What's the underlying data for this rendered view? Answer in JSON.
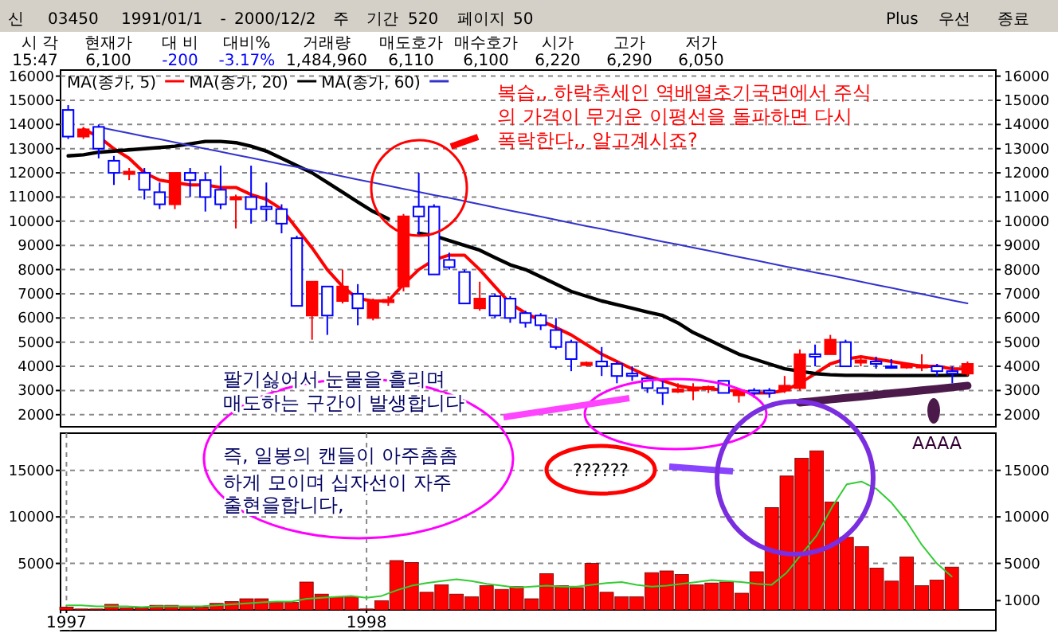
{
  "chart_data": [
    {
      "type": "other",
      "annotations": [
        "신",
        "03450",
        "1991/01/1",
        "-",
        "2000/12/2",
        "주",
        "기간",
        "520",
        "페이지",
        "50",
        "Plus",
        "우선",
        "종료",
        "시 각",
        "현재가",
        "대 비",
        "대비%",
        "거래량",
        "매도호가",
        "매수호가",
        "시가",
        "고가",
        "저가",
        "15:47",
        "6,100",
        "-200",
        "-3.17%",
        "1,484,960",
        "6,110",
        "6,100",
        "6,220",
        "6,290",
        "6,050"
      ]
    },
    {
      "type": "candlestick",
      "categories": [
        null,
        null,
        null,
        null,
        null,
        null,
        null,
        null,
        null,
        null,
        null,
        null,
        null,
        null,
        null,
        null,
        null,
        null,
        null,
        null,
        null,
        null,
        null,
        null,
        null,
        null,
        null,
        null,
        null,
        null,
        null,
        null,
        null,
        null,
        null,
        null,
        null,
        null,
        null,
        null,
        null,
        null,
        null,
        null,
        null,
        null,
        null,
        null,
        null,
        null,
        null,
        null,
        null,
        null,
        null,
        null,
        null,
        null,
        null,
        null
      ],
      "ohlc": [
        [
          14600,
          14800,
          13400,
          13500
        ],
        [
          13500,
          13900,
          13400,
          13800
        ],
        [
          13900,
          14000,
          12600,
          13000
        ],
        [
          12500,
          12700,
          11500,
          12000
        ],
        [
          11950,
          12200,
          11700,
          12050
        ],
        [
          12000,
          12200,
          10900,
          11300
        ],
        [
          11200,
          11600,
          10500,
          10700
        ],
        [
          10700,
          12000,
          10500,
          12000
        ],
        [
          12000,
          12200,
          11000,
          11700
        ],
        [
          11700,
          12000,
          10400,
          11000
        ],
        [
          11300,
          12300,
          10500,
          10700
        ],
        [
          10900,
          11100,
          9700,
          11000
        ],
        [
          11000,
          12300,
          9900,
          10500
        ],
        [
          10600,
          11600,
          10000,
          10500
        ],
        [
          10500,
          10700,
          9500,
          9900
        ],
        [
          9300,
          9400,
          6500,
          6500
        ],
        [
          6100,
          7500,
          5100,
          7500
        ],
        [
          7300,
          7300,
          5300,
          6100
        ],
        [
          6700,
          8000,
          6600,
          7300
        ],
        [
          7000,
          7400,
          5700,
          6400
        ],
        [
          6000,
          6800,
          5900,
          6700
        ],
        [
          6650,
          6900,
          6500,
          6750
        ],
        [
          7300,
          10300,
          7100,
          10200
        ],
        [
          10600,
          12000,
          9400,
          10200
        ],
        [
          10600,
          10700,
          7800,
          7800
        ],
        [
          8400,
          8700,
          8000,
          8100
        ],
        [
          7900,
          8000,
          6600,
          6600
        ],
        [
          6400,
          7500,
          6300,
          6800
        ],
        [
          6900,
          7000,
          6000,
          6100
        ],
        [
          6800,
          6900,
          5800,
          6000
        ],
        [
          6200,
          6300,
          5600,
          5800
        ],
        [
          6100,
          6200,
          5500,
          5700
        ],
        [
          5500,
          6000,
          4700,
          4800
        ],
        [
          5000,
          5100,
          3800,
          4300
        ],
        [
          4050,
          4200,
          4000,
          4150
        ],
        [
          4200,
          4800,
          3600,
          4000
        ],
        [
          4100,
          4200,
          3300,
          3600
        ],
        [
          3700,
          4000,
          3400,
          3600
        ],
        [
          3500,
          3600,
          2900,
          3100
        ],
        [
          3100,
          3400,
          2400,
          2900
        ],
        [
          2950,
          3300,
          2900,
          3050
        ],
        [
          3000,
          3300,
          2600,
          3100
        ],
        [
          3050,
          3200,
          2900,
          3150
        ],
        [
          3400,
          3400,
          2900,
          2900
        ],
        [
          2800,
          3000,
          2500,
          3000
        ],
        [
          3000,
          3100,
          2700,
          2900
        ],
        [
          3000,
          3100,
          2700,
          2900
        ],
        [
          3000,
          3600,
          2900,
          3200
        ],
        [
          3100,
          4700,
          3000,
          4500
        ],
        [
          4500,
          4900,
          4000,
          4400
        ],
        [
          4500,
          5300,
          4500,
          5100
        ],
        [
          5000,
          5100,
          4000,
          4000
        ],
        [
          4150,
          4400,
          4000,
          4250
        ],
        [
          4200,
          4400,
          3900,
          4100
        ],
        [
          4000,
          4300,
          3900,
          3950
        ],
        [
          3950,
          4100,
          3900,
          4050
        ],
        [
          3950,
          4500,
          3800,
          4050
        ],
        [
          4000,
          4100,
          3600,
          3800
        ],
        [
          3800,
          4000,
          3300,
          3700
        ],
        [
          3700,
          4200,
          3600,
          4100
        ]
      ],
      "series": [
        {
          "type": "line",
          "name": "MA(종가, 5)",
          "color": "#ff0000",
          "values": [
            null,
            13800,
            13500,
            13000,
            12600,
            12000,
            11700,
            11600,
            11500,
            11500,
            11400,
            11400,
            11100,
            10900,
            10500,
            9700,
            8900,
            8000,
            7300,
            6800,
            6700,
            6700,
            7400,
            8000,
            8400,
            8600,
            8600,
            8000,
            7300,
            6600,
            6200,
            5900,
            5600,
            5300,
            4900,
            4500,
            4200,
            3900,
            3600,
            3400,
            3200,
            3100,
            3100,
            3000,
            3000,
            2900,
            2900,
            3000,
            3300,
            3700,
            4100,
            4300,
            4400,
            4300,
            4200,
            4100,
            4000,
            4000,
            3900,
            3900
          ]
        },
        {
          "type": "line",
          "name": "MA(종가, 20)",
          "color": "#000000",
          "values": [
            12700,
            12750,
            12850,
            12900,
            12950,
            13000,
            13050,
            13100,
            13200,
            13300,
            13300,
            13250,
            13100,
            12900,
            12600,
            12300,
            12000,
            11600,
            11200,
            10800,
            10400,
            10100,
            null,
            9500,
            9400,
            9200,
            9000,
            8800,
            8500,
            8200,
            8000,
            7700,
            7400,
            7100,
            6900,
            6700,
            6550,
            6400,
            6250,
            6100,
            5800,
            5400,
            5100,
            4800,
            4500,
            4300,
            4100,
            3900,
            3800,
            3700,
            3650,
            3630,
            3630,
            3620,
            3620,
            3620,
            3620,
            3620,
            3630,
            3640
          ]
        },
        {
          "type": "line",
          "name": "MA(종가, 60)",
          "color": "#3333cc",
          "values": [
            null,
            null,
            13900,
            13770,
            13640,
            13510,
            13390,
            13260,
            13130,
            13000,
            12880,
            12750,
            12620,
            12490,
            12360,
            12240,
            12110,
            11980,
            11850,
            11720,
            11600,
            11470,
            11340,
            11210,
            11080,
            10960,
            10830,
            10700,
            10570,
            10440,
            10320,
            10190,
            10060,
            9930,
            9800,
            9680,
            9550,
            9420,
            9290,
            9160,
            9040,
            8910,
            8780,
            8650,
            8520,
            8400,
            8270,
            8140,
            8010,
            7880,
            7760,
            7630,
            7500,
            7370,
            7240,
            7120,
            6990,
            6860,
            6730,
            6600
          ]
        },
        {
          "type": "line",
          "color": "#4b1a4b",
          "values": [
            null,
            null,
            null,
            null,
            null,
            null,
            null,
            null,
            null,
            null,
            null,
            null,
            null,
            null,
            null,
            null,
            null,
            null,
            null,
            null,
            null,
            null,
            null,
            null,
            null,
            null,
            null,
            null,
            null,
            null,
            null,
            null,
            null,
            null,
            null,
            null,
            null,
            null,
            null,
            null,
            null,
            null,
            null,
            null,
            null,
            null,
            null,
            null,
            2500,
            2560,
            2630,
            2690,
            2750,
            2820,
            2880,
            2940,
            3010,
            3070,
            3130,
            3200
          ]
        }
      ],
      "ylim": [
        1500,
        16250
      ],
      "yticks": [
        2000,
        3000,
        4000,
        5000,
        6000,
        7000,
        8000,
        9000,
        10000,
        11000,
        12000,
        13000,
        14000,
        15000,
        16000
      ],
      "y2lim": [
        1500,
        16250
      ],
      "y2ticks": [
        2000,
        3000,
        4000,
        5000,
        6000,
        7000,
        8000,
        9000,
        10000,
        11000,
        12000,
        13000,
        14000,
        15000,
        16000
      ],
      "grid": "y",
      "legend": "top left",
      "tick_labels": "y",
      "annotations": [
        "복습,, 하락추세인 역배열초기국면에서 주식\n의 가격이 무거운 이평선을 돌파하면 다시\n폭락한다,,  알고계시죠?",
        "팔기싫어서 눈물을 흘리며\n매도하는 구간이 발생합니다\n즉, 일봉의 캔들이 아주촘촘\n하게 모이며 십자선이 자주\n출현을합니다,"
      ]
    },
    {
      "type": "bar",
      "categories": [
        "1997",
        null,
        null,
        null,
        null,
        null,
        null,
        null,
        null,
        null,
        null,
        null,
        null,
        null,
        null,
        null,
        null,
        null,
        null,
        null,
        "1998",
        null,
        null,
        null,
        null,
        null,
        null,
        null,
        null,
        null,
        null,
        null,
        null,
        null,
        null,
        null,
        null,
        null,
        null,
        null,
        null,
        null,
        null,
        null,
        null,
        null,
        null,
        null,
        null,
        null,
        null,
        null,
        null,
        null,
        null,
        null,
        null,
        null,
        null,
        null
      ],
      "series": [
        {
          "type": "bar",
          "color": "#ff0000",
          "values": [
            300,
            100,
            100,
            600,
            200,
            200,
            500,
            500,
            300,
            300,
            700,
            900,
            1200,
            1200,
            800,
            800,
            3000,
            1700,
            1400,
            1400,
            100,
            1000,
            5300,
            5100,
            1900,
            2700,
            1700,
            1400,
            2600,
            2200,
            2500,
            1200,
            3900,
            2600,
            2400,
            5000,
            1900,
            1400,
            1400,
            4000,
            4200,
            3800,
            2700,
            2900,
            3000,
            1800,
            4100,
            11000,
            14400,
            16300,
            17100,
            11600,
            7800,
            6800,
            4500,
            3100,
            5700,
            2600,
            3200,
            4600
          ]
        },
        {
          "type": "line",
          "color": "#33cc33",
          "values": [
            500,
            500,
            400,
            400,
            400,
            300,
            400,
            400,
            400,
            400,
            500,
            600,
            700,
            800,
            900,
            900,
            1200,
            1300,
            1400,
            1500,
            1300,
            1500,
            2100,
            2600,
            2900,
            3100,
            3300,
            3100,
            2800,
            2600,
            2400,
            2500,
            2600,
            2500,
            2500,
            2700,
            2900,
            3000,
            2700,
            2500,
            2600,
            2800,
            3000,
            3200,
            3100,
            3000,
            2800,
            2700,
            4000,
            6000,
            8000,
            11000,
            13500,
            13800,
            13000,
            11500,
            9500,
            7000,
            5000,
            3600
          ]
        }
      ],
      "ylim": [
        0,
        19000
      ],
      "yticks": [
        5000,
        10000,
        15000
      ],
      "y2lim": [
        0,
        19000
      ],
      "y2ticks": [
        1000,
        5000,
        10000,
        15000
      ],
      "grid": true,
      "annotations": [
        "??????",
        "AAAA"
      ]
    }
  ]
}
